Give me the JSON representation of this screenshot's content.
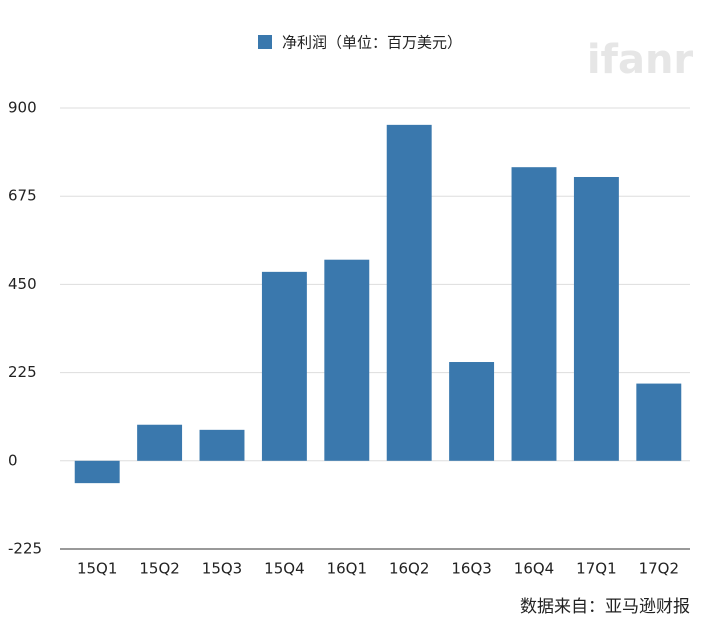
{
  "chart_data": {
    "type": "bar",
    "categories": [
      "15Q1",
      "15Q2",
      "15Q3",
      "15Q4",
      "16Q1",
      "16Q2",
      "16Q3",
      "16Q4",
      "17Q1",
      "17Q2"
    ],
    "series": [
      {
        "name": "净利润（单位：百万美元）",
        "color": "#3a78ad",
        "values": [
          -57,
          92,
          79,
          482,
          513,
          857,
          252,
          749,
          724,
          197
        ]
      }
    ],
    "ylim": [
      -225,
      900
    ],
    "yticks": [
      -225,
      0,
      225,
      450,
      675,
      900
    ],
    "grid": true,
    "source": "数据来自：亚马逊财报",
    "watermark": "ifanr"
  }
}
